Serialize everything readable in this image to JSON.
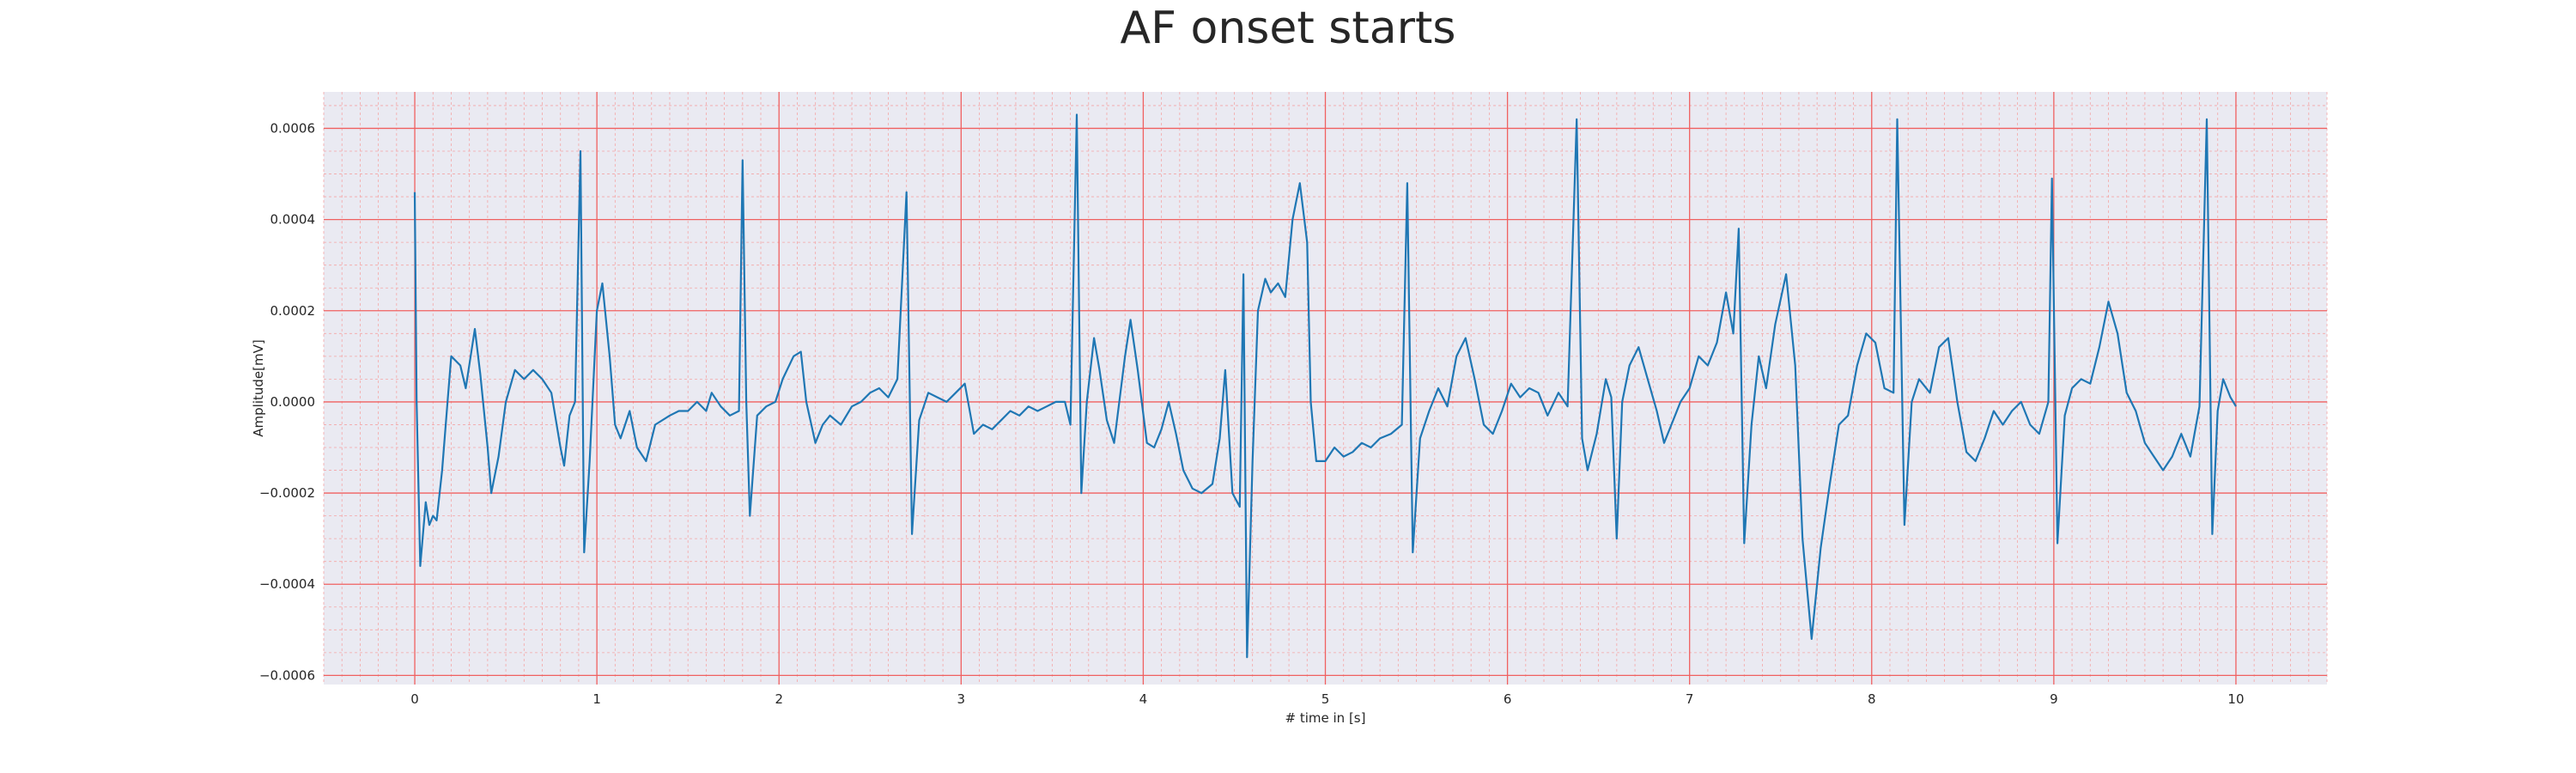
{
  "chart_data": {
    "type": "line",
    "title": "AF onset starts",
    "xlabel": "# time in [s]",
    "ylabel": "Amplitude[mV]",
    "xlim": [
      -0.5,
      10.5
    ],
    "ylim": [
      -0.00062,
      0.00068
    ],
    "x_ticks": [
      0,
      1,
      2,
      3,
      4,
      5,
      6,
      7,
      8,
      9,
      10
    ],
    "x_tick_labels": [
      "0",
      "1",
      "2",
      "3",
      "4",
      "5",
      "6",
      "7",
      "8",
      "9",
      "10"
    ],
    "y_ticks": [
      -0.0006,
      -0.0004,
      -0.0002,
      0,
      0.0002,
      0.0004,
      0.0006
    ],
    "y_tick_labels": [
      "−0.0006",
      "−0.0004",
      "−0.0002",
      "0.0000",
      "0.0002",
      "0.0004",
      "0.0006"
    ],
    "grid": true,
    "series": [
      {
        "color": "#1f77b4",
        "points": [
          [
            0.0,
            0.00046
          ],
          [
            0.01,
            0.0
          ],
          [
            0.03,
            -0.00036
          ],
          [
            0.06,
            -0.00022
          ],
          [
            0.08,
            -0.00027
          ],
          [
            0.1,
            -0.00025
          ],
          [
            0.12,
            -0.00026
          ],
          [
            0.15,
            -0.00015
          ],
          [
            0.18,
            0.0
          ],
          [
            0.2,
            0.0001
          ],
          [
            0.25,
            8e-05
          ],
          [
            0.28,
            3e-05
          ],
          [
            0.33,
            0.00016
          ],
          [
            0.36,
            6e-05
          ],
          [
            0.4,
            -0.0001
          ],
          [
            0.42,
            -0.0002
          ],
          [
            0.46,
            -0.00012
          ],
          [
            0.5,
            0.0
          ],
          [
            0.55,
            7e-05
          ],
          [
            0.6,
            5e-05
          ],
          [
            0.65,
            7e-05
          ],
          [
            0.7,
            5e-05
          ],
          [
            0.75,
            2e-05
          ],
          [
            0.8,
            -0.0001
          ],
          [
            0.82,
            -0.00014
          ],
          [
            0.85,
            -3e-05
          ],
          [
            0.88,
            0.0
          ],
          [
            0.91,
            0.00055
          ],
          [
            0.93,
            -0.00033
          ],
          [
            0.96,
            -0.00013
          ],
          [
            1.0,
            0.0002
          ],
          [
            1.03,
            0.00026
          ],
          [
            1.07,
            0.0001
          ],
          [
            1.1,
            -5e-05
          ],
          [
            1.13,
            -8e-05
          ],
          [
            1.18,
            -2e-05
          ],
          [
            1.22,
            -0.0001
          ],
          [
            1.27,
            -0.00013
          ],
          [
            1.32,
            -5e-05
          ],
          [
            1.4,
            -3e-05
          ],
          [
            1.45,
            -2e-05
          ],
          [
            1.5,
            -2e-05
          ],
          [
            1.55,
            0.0
          ],
          [
            1.6,
            -2e-05
          ],
          [
            1.63,
            2e-05
          ],
          [
            1.68,
            -1e-05
          ],
          [
            1.73,
            -3e-05
          ],
          [
            1.78,
            -2e-05
          ],
          [
            1.8,
            0.00053
          ],
          [
            1.82,
            0.0
          ],
          [
            1.84,
            -0.00025
          ],
          [
            1.88,
            -3e-05
          ],
          [
            1.93,
            -1e-05
          ],
          [
            1.98,
            0.0
          ],
          [
            2.02,
            5e-05
          ],
          [
            2.08,
            0.0001
          ],
          [
            2.12,
            0.00011
          ],
          [
            2.15,
            0.0
          ],
          [
            2.2,
            -9e-05
          ],
          [
            2.24,
            -5e-05
          ],
          [
            2.28,
            -3e-05
          ],
          [
            2.34,
            -5e-05
          ],
          [
            2.4,
            -1e-05
          ],
          [
            2.45,
            0.0
          ],
          [
            2.5,
            2e-05
          ],
          [
            2.55,
            3e-05
          ],
          [
            2.6,
            1e-05
          ],
          [
            2.65,
            5e-05
          ],
          [
            2.7,
            0.00046
          ],
          [
            2.73,
            -0.00029
          ],
          [
            2.77,
            -4e-05
          ],
          [
            2.82,
            2e-05
          ],
          [
            2.87,
            1e-05
          ],
          [
            2.92,
            0.0
          ],
          [
            2.97,
            2e-05
          ],
          [
            3.02,
            4e-05
          ],
          [
            3.07,
            -7e-05
          ],
          [
            3.12,
            -5e-05
          ],
          [
            3.17,
            -6e-05
          ],
          [
            3.22,
            -4e-05
          ],
          [
            3.27,
            -2e-05
          ],
          [
            3.32,
            -3e-05
          ],
          [
            3.37,
            -1e-05
          ],
          [
            3.42,
            -2e-05
          ],
          [
            3.47,
            -1e-05
          ],
          [
            3.52,
            0.0
          ],
          [
            3.57,
            0.0
          ],
          [
            3.6,
            -5e-05
          ],
          [
            3.635,
            0.00063
          ],
          [
            3.66,
            -0.0002
          ],
          [
            3.69,
            0.0
          ],
          [
            3.73,
            0.00014
          ],
          [
            3.76,
            7e-05
          ],
          [
            3.8,
            -4e-05
          ],
          [
            3.84,
            -9e-05
          ],
          [
            3.9,
            0.0001
          ],
          [
            3.93,
            0.00018
          ],
          [
            3.97,
            7e-05
          ],
          [
            4.02,
            -9e-05
          ],
          [
            4.06,
            -0.0001
          ],
          [
            4.1,
            -6e-05
          ],
          [
            4.14,
            0.0
          ],
          [
            4.18,
            -7e-05
          ],
          [
            4.22,
            -0.00015
          ],
          [
            4.27,
            -0.00019
          ],
          [
            4.32,
            -0.0002
          ],
          [
            4.38,
            -0.00018
          ],
          [
            4.42,
            -8e-05
          ],
          [
            4.45,
            7e-05
          ],
          [
            4.49,
            -0.0002
          ],
          [
            4.53,
            -0.00023
          ],
          [
            4.55,
            0.00028
          ],
          [
            4.57,
            -0.00056
          ],
          [
            4.6,
            -0.00013
          ],
          [
            4.63,
            0.0002
          ],
          [
            4.67,
            0.00027
          ],
          [
            4.7,
            0.00024
          ],
          [
            4.74,
            0.00026
          ],
          [
            4.78,
            0.00023
          ],
          [
            4.82,
            0.0004
          ],
          [
            4.86,
            0.00048
          ],
          [
            4.9,
            0.00035
          ],
          [
            4.92,
            0.0
          ],
          [
            4.95,
            -0.00013
          ],
          [
            5.0,
            -0.00013
          ],
          [
            5.05,
            -0.0001
          ],
          [
            5.1,
            -0.00012
          ],
          [
            5.15,
            -0.00011
          ],
          [
            5.2,
            -9e-05
          ],
          [
            5.25,
            -0.0001
          ],
          [
            5.3,
            -8e-05
          ],
          [
            5.36,
            -7e-05
          ],
          [
            5.42,
            -5e-05
          ],
          [
            5.45,
            0.00048
          ],
          [
            5.48,
            -0.00033
          ],
          [
            5.52,
            -8e-05
          ],
          [
            5.57,
            -2e-05
          ],
          [
            5.62,
            3e-05
          ],
          [
            5.67,
            -1e-05
          ],
          [
            5.72,
            0.0001
          ],
          [
            5.77,
            0.00014
          ],
          [
            5.82,
            5e-05
          ],
          [
            5.87,
            -5e-05
          ],
          [
            5.92,
            -7e-05
          ],
          [
            5.97,
            -2e-05
          ],
          [
            6.02,
            4e-05
          ],
          [
            6.07,
            1e-05
          ],
          [
            6.12,
            3e-05
          ],
          [
            6.17,
            2e-05
          ],
          [
            6.22,
            -3e-05
          ],
          [
            6.28,
            2e-05
          ],
          [
            6.33,
            -1e-05
          ],
          [
            6.38,
            0.00062
          ],
          [
            6.41,
            -8e-05
          ],
          [
            6.44,
            -0.00015
          ],
          [
            6.49,
            -7e-05
          ],
          [
            6.54,
            5e-05
          ],
          [
            6.57,
            1e-05
          ],
          [
            6.6,
            -0.0003
          ],
          [
            6.63,
            0.0
          ],
          [
            6.67,
            8e-05
          ],
          [
            6.72,
            0.00012
          ],
          [
            6.77,
            5e-05
          ],
          [
            6.82,
            -2e-05
          ],
          [
            6.86,
            -9e-05
          ],
          [
            6.9,
            -5e-05
          ],
          [
            6.95,
            0.0
          ],
          [
            7.0,
            3e-05
          ],
          [
            7.05,
            0.0001
          ],
          [
            7.1,
            8e-05
          ],
          [
            7.15,
            0.00013
          ],
          [
            7.2,
            0.00024
          ],
          [
            7.24,
            0.00015
          ],
          [
            7.27,
            0.00038
          ],
          [
            7.3,
            -0.00031
          ],
          [
            7.34,
            -5e-05
          ],
          [
            7.38,
            0.0001
          ],
          [
            7.42,
            3e-05
          ],
          [
            7.47,
            0.00017
          ],
          [
            7.53,
            0.00028
          ],
          [
            7.58,
            8e-05
          ],
          [
            7.62,
            -0.0003
          ],
          [
            7.67,
            -0.00052
          ],
          [
            7.72,
            -0.00032
          ],
          [
            7.77,
            -0.00018
          ],
          [
            7.82,
            -5e-05
          ],
          [
            7.87,
            -3e-05
          ],
          [
            7.92,
            8e-05
          ],
          [
            7.97,
            0.00015
          ],
          [
            8.02,
            0.00013
          ],
          [
            8.07,
            3e-05
          ],
          [
            8.12,
            2e-05
          ],
          [
            8.14,
            0.00062
          ],
          [
            8.18,
            -0.00027
          ],
          [
            8.22,
            0.0
          ],
          [
            8.26,
            5e-05
          ],
          [
            8.32,
            2e-05
          ],
          [
            8.37,
            0.00012
          ],
          [
            8.42,
            0.00014
          ],
          [
            8.47,
            0.0
          ],
          [
            8.52,
            -0.00011
          ],
          [
            8.57,
            -0.00013
          ],
          [
            8.62,
            -8e-05
          ],
          [
            8.67,
            -2e-05
          ],
          [
            8.72,
            -5e-05
          ],
          [
            8.77,
            -2e-05
          ],
          [
            8.82,
            0.0
          ],
          [
            8.87,
            -5e-05
          ],
          [
            8.92,
            -7e-05
          ],
          [
            8.97,
            0.0
          ],
          [
            8.99,
            0.00049
          ],
          [
            9.02,
            -0.00031
          ],
          [
            9.06,
            -3e-05
          ],
          [
            9.1,
            3e-05
          ],
          [
            9.15,
            5e-05
          ],
          [
            9.2,
            4e-05
          ],
          [
            9.25,
            0.00012
          ],
          [
            9.3,
            0.00022
          ],
          [
            9.35,
            0.00015
          ],
          [
            9.4,
            2e-05
          ],
          [
            9.45,
            -2e-05
          ],
          [
            9.5,
            -9e-05
          ],
          [
            9.55,
            -0.00012
          ],
          [
            9.6,
            -0.00015
          ],
          [
            9.65,
            -0.00012
          ],
          [
            9.7,
            -7e-05
          ],
          [
            9.75,
            -0.00012
          ],
          [
            9.8,
            -1e-05
          ],
          [
            9.84,
            0.00062
          ],
          [
            9.87,
            -0.00029
          ],
          [
            9.9,
            -2e-05
          ],
          [
            9.93,
            5e-05
          ],
          [
            9.97,
            1e-05
          ],
          [
            10.0,
            -1e-05
          ]
        ]
      }
    ]
  }
}
